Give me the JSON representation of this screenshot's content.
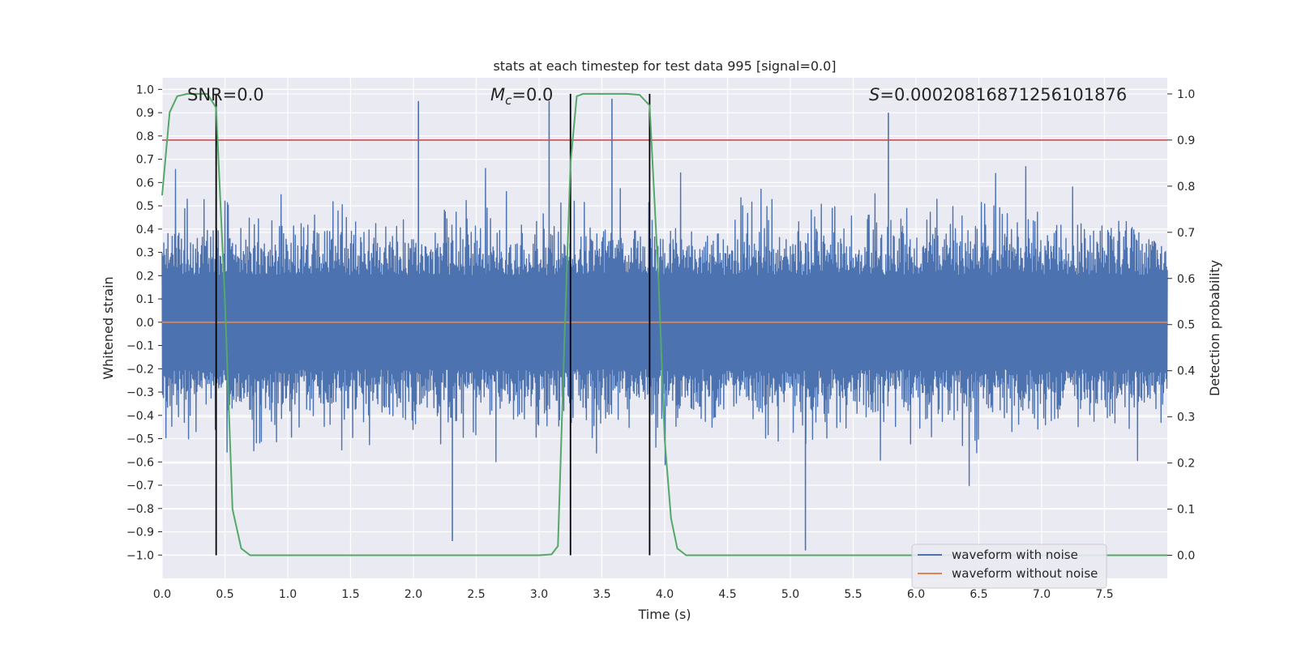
{
  "chart_data": {
    "type": "line",
    "title": "stats at each timestep for test data 995 [signal=0.0]",
    "xlabel": "Time (s)",
    "ylabel": "Whitened strain",
    "ylabel_right": "Detection probability",
    "xlim": [
      0.0,
      8.0
    ],
    "ylim": [
      -1.1,
      1.05
    ],
    "ylim_right": [
      -0.05,
      1.035
    ],
    "x_ticks": [
      0.0,
      0.5,
      1.0,
      1.5,
      2.0,
      2.5,
      3.0,
      3.5,
      4.0,
      4.5,
      5.0,
      5.5,
      6.0,
      6.5,
      7.0,
      7.5
    ],
    "x_tick_labels": [
      "0.0",
      "0.5",
      "1.0",
      "1.5",
      "2.0",
      "2.5",
      "3.0",
      "3.5",
      "4.0",
      "4.5",
      "5.0",
      "5.5",
      "6.0",
      "6.5",
      "7.0",
      "7.5"
    ],
    "y_ticks": [
      1.0,
      0.9,
      0.8,
      0.7,
      0.6,
      0.5,
      0.4,
      0.3,
      0.2,
      0.1,
      0.0,
      -0.1,
      -0.2,
      -0.3,
      -0.4,
      -0.5,
      -0.6,
      -0.7,
      -0.8,
      -0.9,
      -1.0
    ],
    "y_tick_labels": [
      "1.0",
      "0.9",
      "0.8",
      "0.7",
      "0.6",
      "0.5",
      "0.4",
      "0.3",
      "0.2",
      "0.1",
      "0.0",
      "−0.1",
      "−0.2",
      "−0.3",
      "−0.4",
      "−0.5",
      "−0.6",
      "−0.7",
      "−0.8",
      "−0.9",
      "−1.0"
    ],
    "y_right_ticks": [
      1.0,
      0.9,
      0.8,
      0.7,
      0.6,
      0.5,
      0.4,
      0.3,
      0.2,
      0.1,
      0.0
    ],
    "y_right_tick_labels": [
      "1.0",
      "0.9",
      "0.8",
      "0.7",
      "0.6",
      "0.5",
      "0.4",
      "0.3",
      "0.2",
      "0.1",
      "0.0"
    ],
    "annotations": {
      "snr": "SNR=0.0",
      "mc_symbol": "M",
      "mc_sub": "c",
      "mc_value": "=0.0",
      "s_symbol": "S",
      "s_value": "=0.00020816871256101876"
    },
    "threshold_line": {
      "y_right": 0.9,
      "color": "#c44e52"
    },
    "vertical_markers_x": [
      0.43,
      3.25,
      3.88
    ],
    "series": [
      {
        "name": "waveform with noise",
        "color": "#4c72b0",
        "note": "dense noise centered at 0 spanning 0-8 s, typical amplitude ~0.2-0.5, peak ~+0.96 near 3.2 s / 3.58 s and ~-0.98 near 5.12 s",
        "peaks": [
          {
            "x": 0.43,
            "y": 0.96
          },
          {
            "x": 2.04,
            "y": 0.95
          },
          {
            "x": 3.08,
            "y": 0.95
          },
          {
            "x": 3.58,
            "y": 0.96
          },
          {
            "x": 5.12,
            "y": -0.98
          },
          {
            "x": 5.78,
            "y": 0.9
          },
          {
            "x": 2.31,
            "y": -0.94
          }
        ]
      },
      {
        "name": "waveform without noise",
        "color": "#dd8452",
        "x": [
          0.0,
          8.0
        ],
        "y": [
          0.0,
          0.0
        ]
      },
      {
        "name": "detection probability",
        "color": "#55a868",
        "axis": "right",
        "x": [
          0.0,
          0.06,
          0.12,
          0.2,
          0.3,
          0.36,
          0.43,
          0.5,
          0.56,
          0.63,
          0.7,
          0.75,
          3.0,
          3.1,
          3.15,
          3.2,
          3.25,
          3.3,
          3.35,
          3.5,
          3.7,
          3.8,
          3.88,
          3.95,
          4.0,
          4.05,
          4.1,
          4.17,
          4.25,
          8.0
        ],
        "y": [
          0.78,
          0.96,
          0.995,
          1.0,
          1.0,
          1.0,
          0.97,
          0.55,
          0.1,
          0.015,
          0.0,
          0.0,
          0.0,
          0.002,
          0.02,
          0.45,
          0.85,
          0.995,
          1.0,
          1.0,
          1.0,
          0.998,
          0.975,
          0.6,
          0.25,
          0.08,
          0.015,
          0.0,
          0.0,
          0.0
        ]
      }
    ],
    "legend": {
      "position": "lower-right",
      "entries": [
        {
          "label": "waveform with noise",
          "color": "#4c72b0"
        },
        {
          "label": "waveform without noise",
          "color": "#dd8452"
        }
      ]
    }
  }
}
